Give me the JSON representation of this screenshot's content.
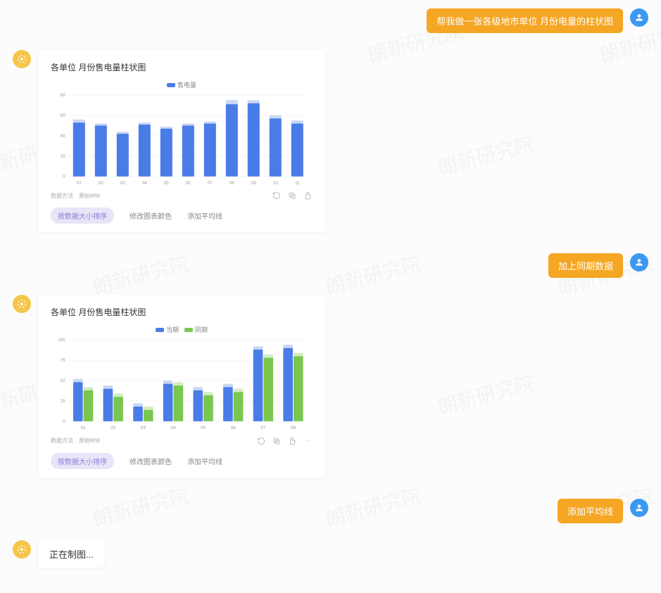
{
  "watermark_text": "朗新研究院",
  "user_avatar_color": "#3b99f2",
  "bot_avatar_color": "#f6c64a",
  "user_bubble_color": "#f5a623",
  "messages": {
    "u1": "帮我做一张各级地市单位   月份电量的柱状图",
    "u2": "加上同期数据",
    "u3": "添加平均线",
    "loading": "正在制图..."
  },
  "chart1": {
    "title": "各单位  月份售电量柱状图",
    "type": "bar",
    "legend": [
      {
        "label": "售电量",
        "color": "#4a7ce8"
      }
    ],
    "categories": [
      "01",
      "02",
      "03",
      "04",
      "05",
      "06",
      "07",
      "08",
      "09",
      "10",
      "11"
    ],
    "values": [
      53,
      50,
      42,
      51,
      47,
      50,
      52,
      71,
      72,
      57,
      52
    ],
    "cap_values": [
      56,
      52,
      44,
      53,
      49,
      52,
      54,
      75,
      75,
      60,
      55
    ],
    "bar_color": "#4a7ce8",
    "cap_color": "#c9d7f5",
    "ylim": [
      0,
      80
    ],
    "ytick_step": 20,
    "background_color": "#ffffff",
    "grid_color": "#eeeeee",
    "bar_width": 0.55,
    "label_fontsize": 7,
    "title_fontsize": 12,
    "meta_left": [
      "数据方法",
      "原始MW"
    ],
    "chips": [
      "按数据大小排序",
      "修改图表颜色",
      "添加平均线"
    ]
  },
  "chart2": {
    "title": "各单位  月份售电量柱状图",
    "type": "bar",
    "legend": [
      {
        "label": "当期",
        "color": "#4a7ce8"
      },
      {
        "label": "同期",
        "color": "#7ac74f"
      }
    ],
    "categories": [
      "01",
      "02",
      "03",
      "04",
      "05",
      "06",
      "07",
      "08"
    ],
    "series": {
      "current": [
        48,
        40,
        18,
        46,
        38,
        42,
        88,
        90
      ],
      "prior": [
        38,
        30,
        14,
        44,
        32,
        36,
        78,
        80
      ]
    },
    "cap_current": [
      52,
      44,
      22,
      50,
      42,
      46,
      92,
      94
    ],
    "cap_prior": [
      42,
      34,
      18,
      48,
      36,
      40,
      82,
      84
    ],
    "colors": {
      "current": "#4a7ce8",
      "prior": "#7ac74f"
    },
    "cap_colors": {
      "current": "#c9d7f5",
      "prior": "#d3edc3"
    },
    "ylim": [
      0,
      100
    ],
    "ytick_step": 25,
    "background_color": "#ffffff",
    "grid_color": "#eeeeee",
    "bar_width": 0.32,
    "label_fontsize": 7,
    "title_fontsize": 12,
    "meta_left": [
      "数据方法",
      "原始MW"
    ],
    "chips": [
      "按数据大小排序",
      "修改图表颜色",
      "添加平均线"
    ]
  }
}
